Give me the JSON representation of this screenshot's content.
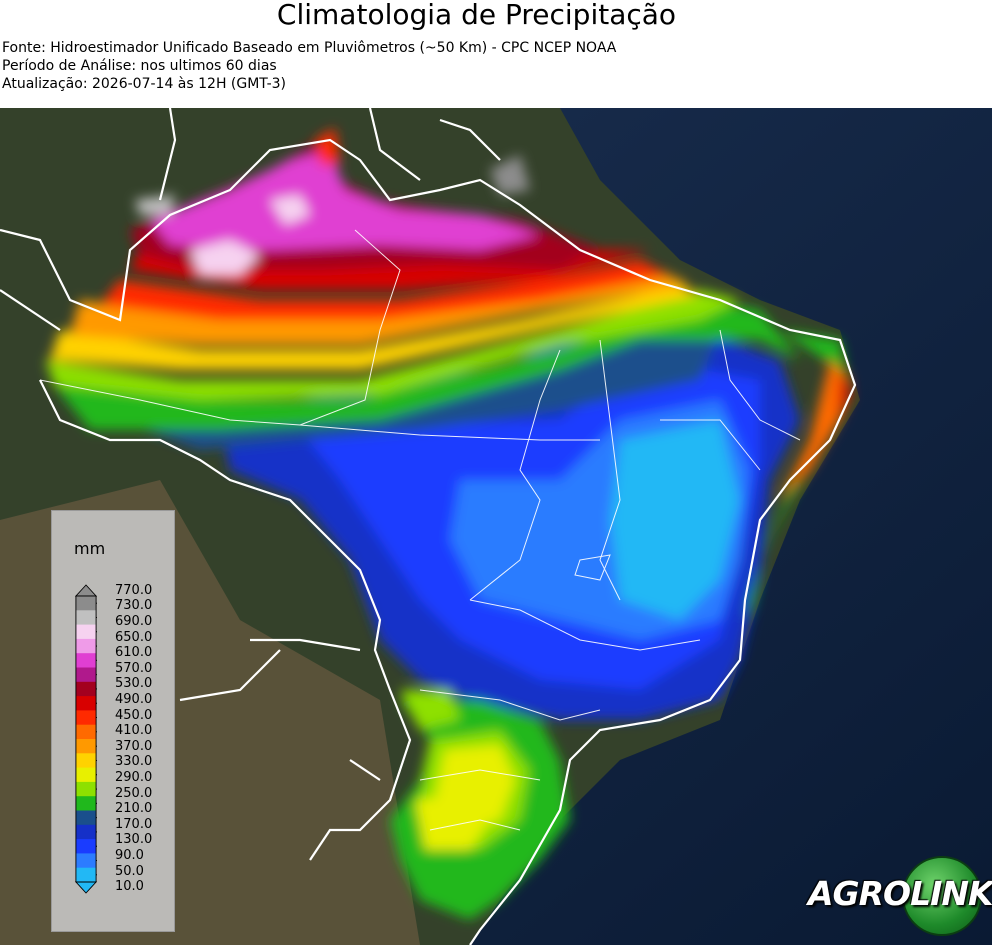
{
  "header": {
    "title": "Climatologia de Precipitação",
    "source": "Fonte: Hidroestimador Unificado Baseado em Pluviômetros (~50 Km) - CPC NCEP NOAA",
    "period": "Período de Análise: nos ultimos 60 dias",
    "updated": "Atualização: 2026-07-14 às 12H (GMT-3)"
  },
  "legend": {
    "unit": "mm",
    "ticks": [
      "770.0",
      "730.0",
      "690.0",
      "650.0",
      "610.0",
      "570.0",
      "530.0",
      "490.0",
      "450.0",
      "410.0",
      "370.0",
      "330.0",
      "290.0",
      "250.0",
      "210.0",
      "170.0",
      "130.0",
      "90.0",
      "50.0",
      "10.0"
    ],
    "colors_top_to_bottom": [
      "#8c8c8c",
      "#c0c0c0",
      "#f6d2f0",
      "#ef9be8",
      "#e03fd2",
      "#b0198c",
      "#a3001f",
      "#d80000",
      "#ff2a00",
      "#ff6a00",
      "#ff9900",
      "#ffd200",
      "#e8f000",
      "#8ee000",
      "#20b81c",
      "#1a4f8c",
      "#1530c8",
      "#1a3cff",
      "#2c7cff",
      "#22b8f5"
    ]
  },
  "logo": {
    "part1": "AGRO",
    "part2": "LINK"
  }
}
